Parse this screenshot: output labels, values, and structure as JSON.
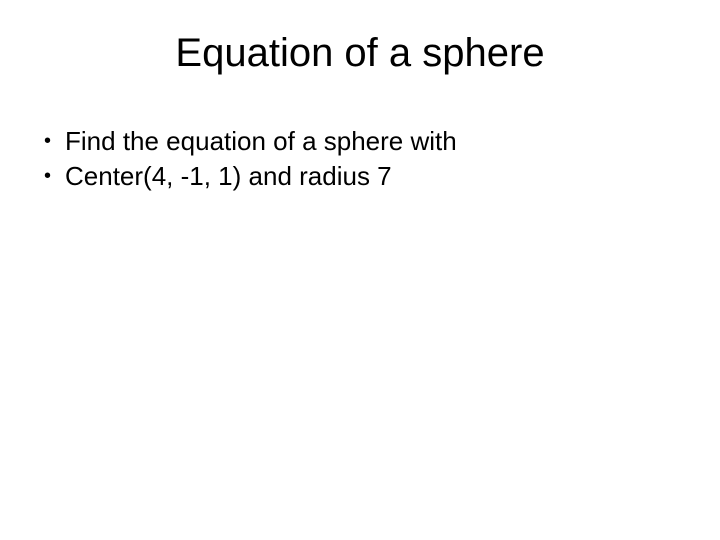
{
  "slide": {
    "title": "Equation of a sphere",
    "bullets": [
      {
        "text": "Find the equation of a sphere with"
      },
      {
        "text": "Center(4, -1, 1) and radius 7"
      }
    ],
    "styling": {
      "background_color": "#ffffff",
      "text_color": "#000000",
      "title_fontsize": 40,
      "title_fontweight": "normal",
      "body_fontsize": 26,
      "font_family": "Arial, Helvetica, sans-serif",
      "bullet_marker": "•"
    }
  }
}
